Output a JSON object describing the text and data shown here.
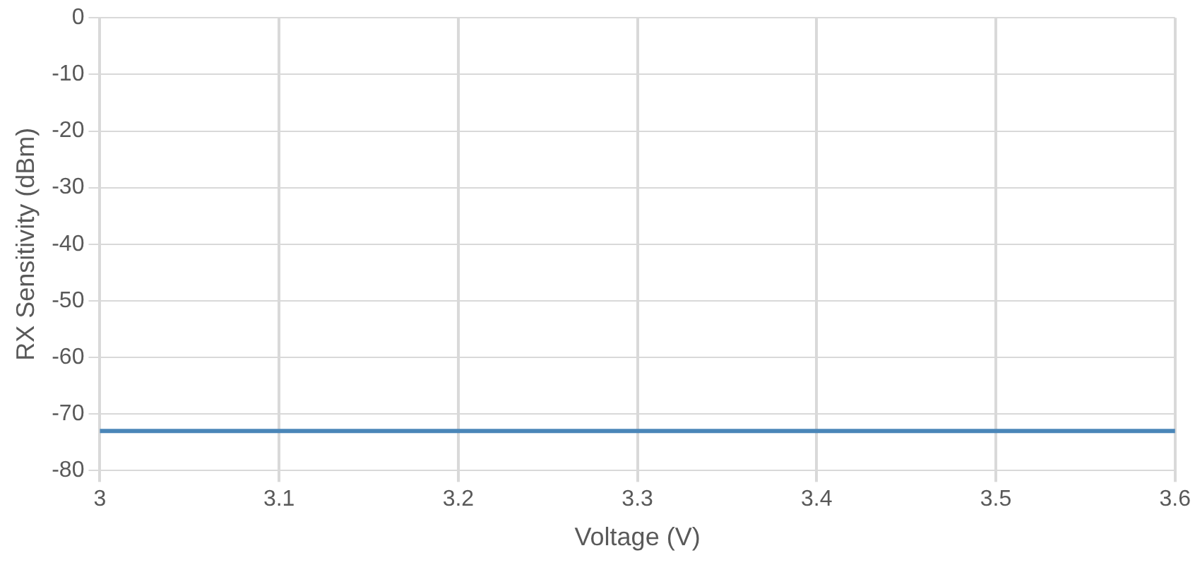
{
  "chart_data": {
    "type": "line",
    "xlabel": "Voltage (V)",
    "ylabel": "RX Sensitivity (dBm)",
    "categories": [
      "3",
      "3.1",
      "3.2",
      "3.3",
      "3.4",
      "3.5",
      "3.6"
    ],
    "series": [
      {
        "color": "#4a86b8",
        "values": [
          -73,
          -73,
          -73,
          -73,
          -73,
          -73,
          -73
        ]
      }
    ],
    "ylim": [
      -80,
      0
    ],
    "yticks": [
      -80,
      -70,
      -60,
      -50,
      -40,
      -30,
      -20,
      -10,
      0
    ],
    "grid": true,
    "legend": false,
    "marker": "none",
    "line_style": "solid"
  }
}
